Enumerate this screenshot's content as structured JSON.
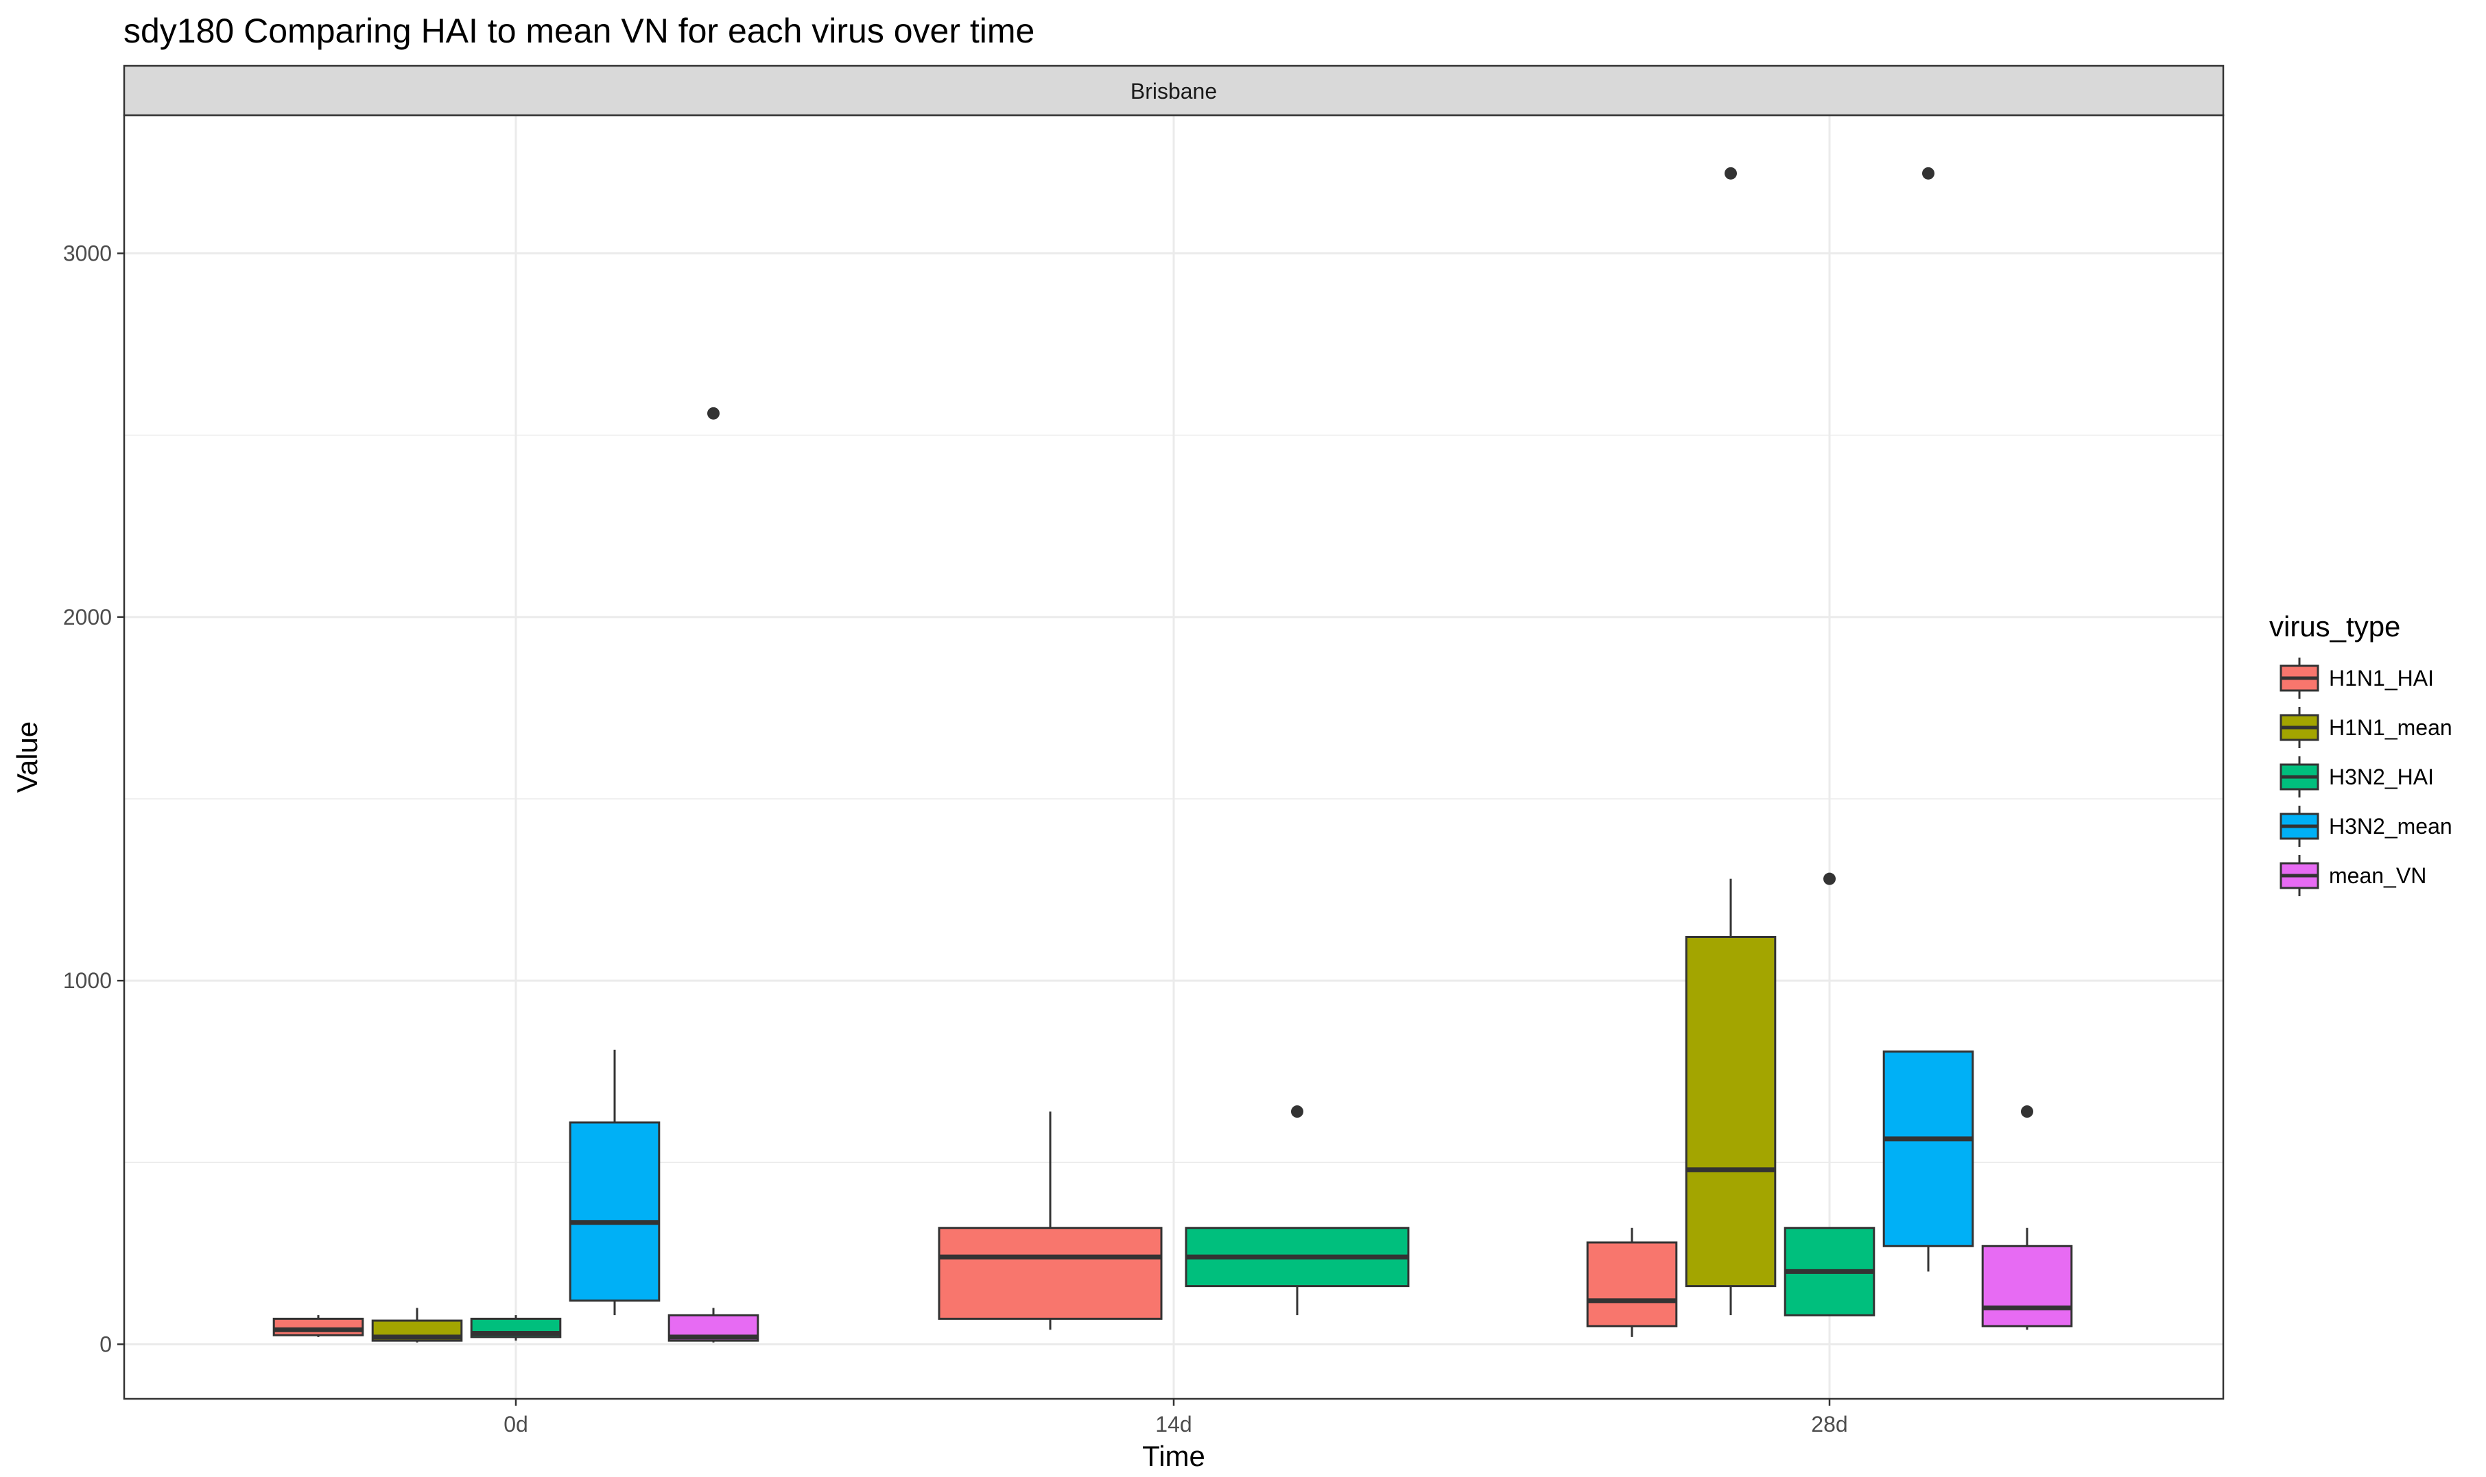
{
  "chart_data": {
    "type": "boxplot",
    "title": "sdy180 Comparing HAI to mean VN for each virus over time",
    "facet": "Brisbane",
    "xlabel": "Time",
    "ylabel": "Value",
    "categories": [
      "0d",
      "14d",
      "28d"
    ],
    "y_ticks": [
      0,
      1000,
      2000,
      3000
    ],
    "ylim": [
      -150,
      3380
    ],
    "grid": true,
    "legend": {
      "title": "virus_type",
      "position": "right",
      "entries": [
        "H1N1_HAI",
        "H1N1_mean",
        "H3N2_HAI",
        "H3N2_mean",
        "mean_VN"
      ]
    },
    "colors": {
      "H1N1_HAI": "#F8766D",
      "H1N1_mean": "#A3A500",
      "H3N2_HAI": "#00BF7D",
      "H3N2_mean": "#00B0F6",
      "mean_VN": "#E76BF3"
    },
    "boxes": [
      {
        "time": "0d",
        "series": "H1N1_HAI",
        "min": 20,
        "q1": 25,
        "median": 40,
        "q3": 70,
        "max": 80,
        "outliers": []
      },
      {
        "time": "0d",
        "series": "H1N1_mean",
        "min": 5,
        "q1": 10,
        "median": 20,
        "q3": 65,
        "max": 100,
        "outliers": []
      },
      {
        "time": "0d",
        "series": "H3N2_HAI",
        "min": 10,
        "q1": 20,
        "median": 30,
        "q3": 70,
        "max": 80,
        "outliers": []
      },
      {
        "time": "0d",
        "series": "H3N2_mean",
        "min": 80,
        "q1": 120,
        "median": 335,
        "q3": 610,
        "max": 810,
        "outliers": []
      },
      {
        "time": "0d",
        "series": "mean_VN",
        "min": 5,
        "q1": 10,
        "median": 20,
        "q3": 80,
        "max": 100,
        "outliers": [
          2560
        ]
      },
      {
        "time": "14d",
        "series": "H1N1_HAI",
        "min": 40,
        "q1": 70,
        "median": 240,
        "q3": 320,
        "max": 640,
        "outliers": []
      },
      {
        "time": "14d",
        "series": "H3N2_HAI",
        "min": 80,
        "q1": 160,
        "median": 240,
        "q3": 320,
        "max": 320,
        "outliers": [
          640
        ]
      },
      {
        "time": "28d",
        "series": "H1N1_HAI",
        "min": 20,
        "q1": 50,
        "median": 120,
        "q3": 280,
        "max": 320,
        "outliers": []
      },
      {
        "time": "28d",
        "series": "H1N1_mean",
        "min": 80,
        "q1": 160,
        "median": 480,
        "q3": 1120,
        "max": 1280,
        "outliers": [
          3220
        ]
      },
      {
        "time": "28d",
        "series": "H3N2_HAI",
        "min": 80,
        "q1": 80,
        "median": 200,
        "q3": 320,
        "max": 320,
        "outliers": [
          1280
        ]
      },
      {
        "time": "28d",
        "series": "H3N2_mean",
        "min": 200,
        "q1": 270,
        "median": 565,
        "q3": 805,
        "max": 805,
        "outliers": [
          3220
        ]
      },
      {
        "time": "28d",
        "series": "mean_VN",
        "min": 40,
        "q1": 50,
        "median": 100,
        "q3": 270,
        "max": 320,
        "outliers": [
          640
        ]
      }
    ]
  }
}
